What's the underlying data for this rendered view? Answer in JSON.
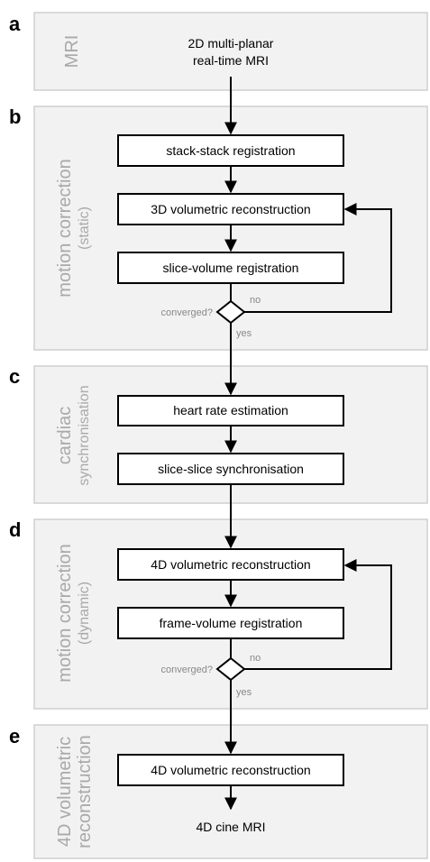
{
  "panels": [
    {
      "letter": "a",
      "label": "MRI",
      "sublabel": ""
    },
    {
      "letter": "b",
      "label": "motion correction",
      "sublabel": "(static)"
    },
    {
      "letter": "c",
      "label": "cardiac",
      "sublabel": "synchronisation"
    },
    {
      "letter": "d",
      "label": "motion correction",
      "sublabel": "(dynamic)"
    },
    {
      "letter": "e",
      "label": "4D volumetric",
      "sublabel": "reconstruction"
    }
  ],
  "input": {
    "line1": "2D multi-planar",
    "line2": "real-time MRI"
  },
  "steps": {
    "stack_stack": "stack-stack registration",
    "recon3d": "3D volumetric reconstruction",
    "slice_volume": "slice-volume registration",
    "heart_rate": "heart rate estimation",
    "slice_slice": "slice-slice synchronisation",
    "recon4d": "4D volumetric reconstruction",
    "frame_volume": "frame-volume registration",
    "recon4d_final": "4D volumetric reconstruction"
  },
  "decisions": {
    "static": {
      "question": "converged?",
      "no": "no",
      "yes": "yes"
    },
    "dynamic": {
      "question": "converged?",
      "no": "no",
      "yes": "yes"
    }
  },
  "output": "4D cine MRI"
}
